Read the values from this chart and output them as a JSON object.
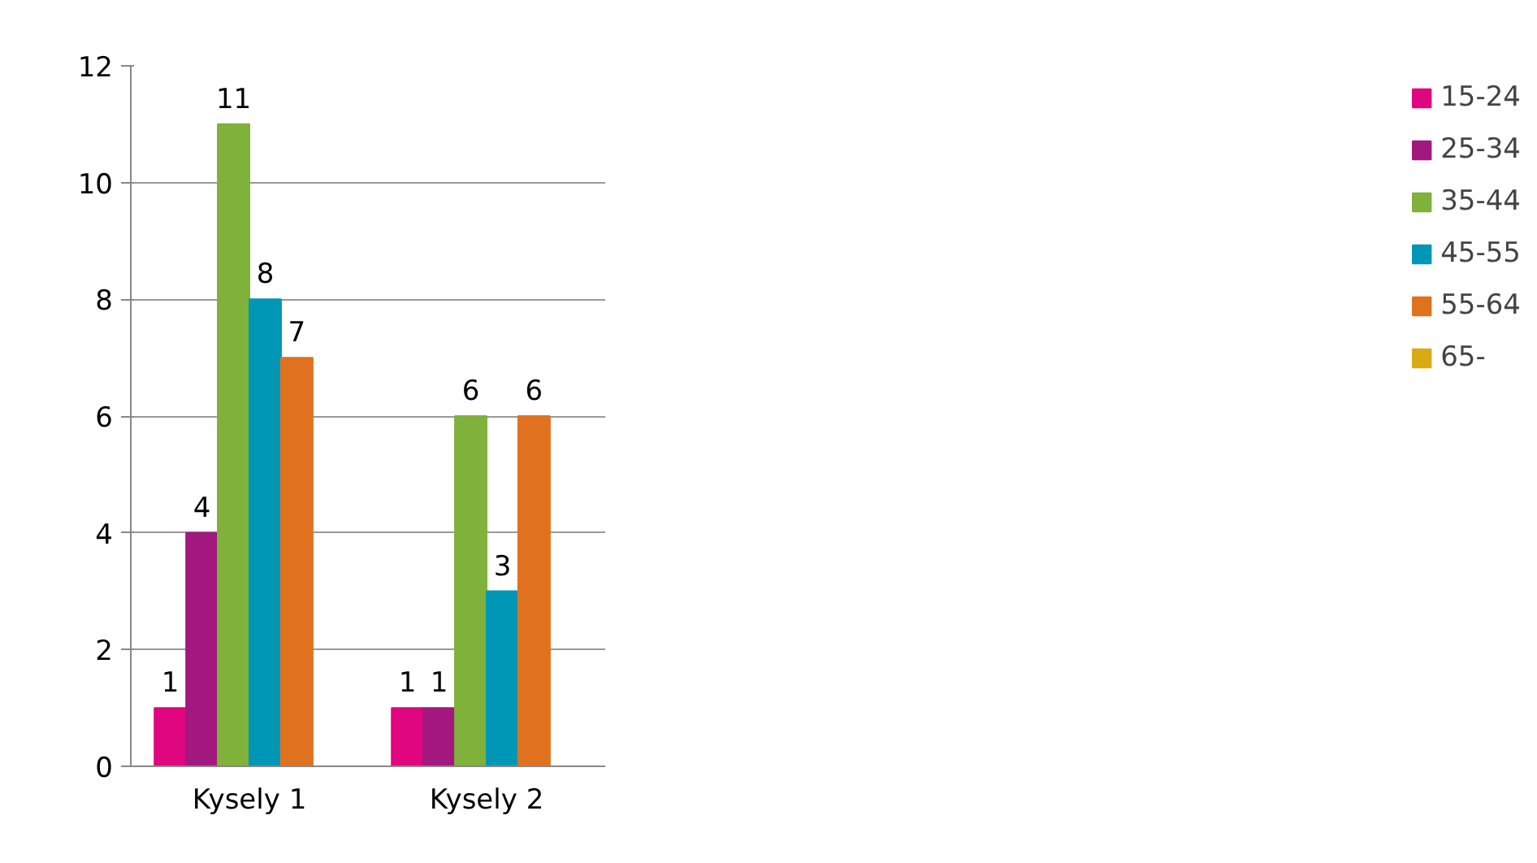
{
  "chart_data": {
    "type": "bar",
    "categories": [
      "Kysely 1",
      "Kysely 2"
    ],
    "series": [
      {
        "name": "15-24",
        "color": "#e0067f",
        "values": [
          1,
          1
        ],
        "value_labels": [
          "1",
          "1"
        ]
      },
      {
        "name": "25-34",
        "color": "#a3187e",
        "values": [
          4,
          1
        ],
        "value_labels": [
          "4",
          "1"
        ]
      },
      {
        "name": "35-44",
        "color": "#7fb13b",
        "values": [
          11,
          6
        ],
        "value_labels": [
          "11",
          "6"
        ]
      },
      {
        "name": "45-55",
        "color": "#0096b5",
        "values": [
          8,
          3
        ],
        "value_labels": [
          "8",
          "3"
        ]
      },
      {
        "name": "55-64",
        "color": "#e0721f",
        "values": [
          7,
          6
        ],
        "value_labels": [
          "7",
          "6"
        ]
      },
      {
        "name": "65-",
        "color": "#d9aa12",
        "values": [
          0,
          0
        ],
        "value_labels": [
          null,
          null
        ]
      }
    ],
    "ylim": [
      0,
      12
    ],
    "yticks": [
      0,
      2,
      4,
      6,
      8,
      10,
      12
    ],
    "grid": "y",
    "legend": "right"
  }
}
